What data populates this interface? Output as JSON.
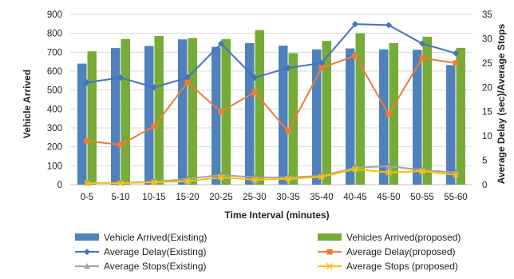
{
  "chart_data": {
    "type": "bar",
    "categories": [
      "0-5",
      "5-10",
      "10-15",
      "15-20",
      "20-25",
      "25-30",
      "30-35",
      "35-40",
      "40-45",
      "45-50",
      "50-55",
      "55-60"
    ],
    "xlabel": "Time Interval (minutes)",
    "ylabel": "Vehicle Arrived",
    "y2label": "Average Delay (sec)/Average Stops",
    "ylim": [
      0,
      900
    ],
    "yticks": [
      0,
      100,
      200,
      300,
      400,
      500,
      600,
      700,
      800,
      900
    ],
    "y2lim": [
      0,
      35
    ],
    "y2ticks": [
      0,
      5,
      10,
      15,
      20,
      25,
      30,
      35
    ],
    "grid": true,
    "legend_position": "bottom",
    "bar_series": [
      {
        "name": "Vehicle Arrived(Existing)",
        "color": "#4F81BD",
        "values": [
          640,
          722,
          733,
          768,
          728,
          748,
          735,
          715,
          720,
          715,
          713,
          632
        ]
      },
      {
        "name": "Vehicles Arrived(proposed)",
        "color": "#77AB38",
        "values": [
          705,
          770,
          786,
          775,
          770,
          817,
          695,
          760,
          800,
          748,
          782,
          723
        ]
      }
    ],
    "line_series": [
      {
        "name": "Average Delay(Existing)",
        "color": "#4472C4",
        "marker": "diamond",
        "axis": "right",
        "values": [
          21,
          22,
          20,
          22,
          29,
          22,
          24,
          25,
          33,
          32.8,
          29,
          27
        ]
      },
      {
        "name": "Average Delay(proposed)",
        "color": "#ED7D31",
        "marker": "square",
        "axis": "right",
        "values": [
          9,
          8.2,
          12,
          21,
          15,
          19,
          11,
          24,
          26.5,
          14.5,
          26,
          25
        ]
      },
      {
        "name": "Average Stops(Existing)",
        "color": "#A5A5A5",
        "marker": "triangle",
        "axis": "right",
        "values": [
          0.3,
          0.4,
          0.6,
          1.2,
          2.0,
          1.5,
          1.5,
          1.8,
          3.5,
          3.8,
          3.0,
          2.5
        ]
      },
      {
        "name": "Average  Stops (proposed)",
        "color": "#FFC000",
        "marker": "x",
        "axis": "right",
        "values": [
          0.3,
          0.3,
          0.5,
          0.7,
          1.5,
          1.0,
          1.2,
          1.6,
          3.2,
          2.5,
          2.8,
          2.0
        ]
      }
    ]
  }
}
